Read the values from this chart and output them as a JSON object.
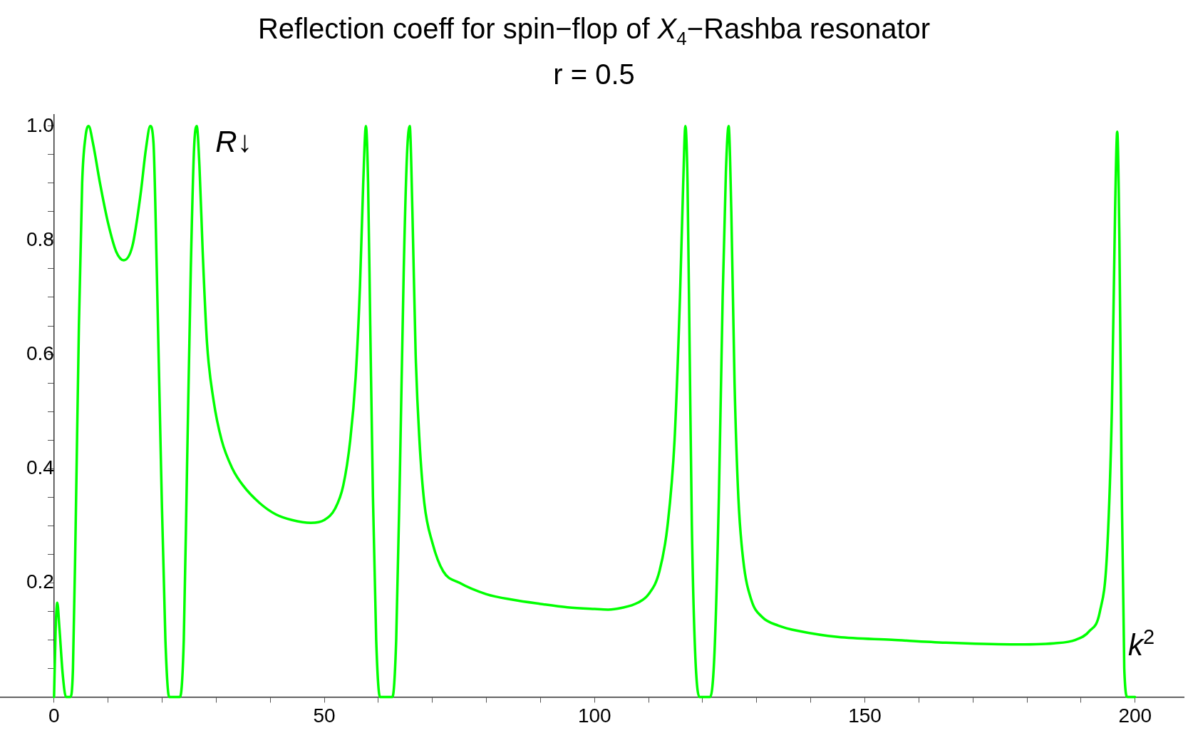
{
  "chart_data": {
    "type": "line",
    "title": "Reflection coeff for spin−flop of X$_{4}$−Rashba resonator",
    "subtitle": "r = 0.5",
    "xlabel": "k$^{2}$",
    "ylabel": "R↓",
    "series": [
      {
        "color": "#00ff00",
        "x": [
          0,
          0.3,
          0.6,
          1,
          1.6,
          2.2,
          3,
          3.5,
          4,
          4.6,
          5.2,
          5.8,
          6.4,
          7.2,
          8.5,
          10,
          11.5,
          12.9,
          14.5,
          16,
          17,
          17.8,
          18.4,
          19,
          19.8,
          20.6,
          21.3,
          23.3,
          24,
          24.6,
          25.3,
          25.9,
          26.4,
          26.9,
          27.5,
          28.3,
          29.5,
          31,
          33,
          35,
          38,
          41,
          44,
          47.5,
          50,
          52,
          53.5,
          54.8,
          55.8,
          56.6,
          57.2,
          57.7,
          58.1,
          58.5,
          59,
          59.6,
          60.3,
          62.6,
          63.3,
          64,
          64.7,
          65.3,
          65.8,
          66.3,
          66.9,
          67.6,
          68.5,
          70,
          72,
          75,
          80,
          85,
          90,
          95,
          100,
          102.5,
          105,
          108,
          110,
          112,
          113.5,
          114.8,
          115.8,
          116.4,
          116.8,
          117.2,
          117.6,
          118,
          118.6,
          119.4,
          121.4,
          122.2,
          123,
          123.7,
          124.3,
          124.8,
          125.3,
          125.9,
          126.6,
          127.5,
          129,
          131,
          134,
          138,
          145,
          155,
          165,
          177,
          185,
          189,
          191.5,
          193.5,
          194.8,
          195.7,
          196.3,
          196.7,
          197.1,
          197.5,
          198,
          198.6,
          200
        ],
        "values": [
          0,
          0.12,
          0.165,
          0.12,
          0.04,
          0,
          0,
          0.05,
          0.3,
          0.65,
          0.9,
          0.98,
          1.0,
          0.97,
          0.9,
          0.83,
          0.78,
          0.765,
          0.79,
          0.88,
          0.96,
          1.0,
          0.97,
          0.75,
          0.4,
          0.1,
          0,
          0,
          0.1,
          0.4,
          0.75,
          0.96,
          1.0,
          0.93,
          0.78,
          0.62,
          0.52,
          0.45,
          0.4,
          0.37,
          0.34,
          0.32,
          0.31,
          0.305,
          0.31,
          0.33,
          0.37,
          0.45,
          0.56,
          0.72,
          0.9,
          1.0,
          0.9,
          0.65,
          0.35,
          0.1,
          0,
          0,
          0.1,
          0.4,
          0.75,
          0.95,
          1.0,
          0.85,
          0.6,
          0.45,
          0.34,
          0.27,
          0.22,
          0.2,
          0.18,
          0.17,
          0.163,
          0.157,
          0.154,
          0.153,
          0.156,
          0.165,
          0.18,
          0.22,
          0.3,
          0.45,
          0.7,
          0.9,
          1.0,
          0.9,
          0.6,
          0.3,
          0.08,
          0,
          0,
          0.08,
          0.35,
          0.7,
          0.92,
          1.0,
          0.85,
          0.55,
          0.35,
          0.24,
          0.17,
          0.14,
          0.125,
          0.115,
          0.105,
          0.1,
          0.095,
          0.092,
          0.094,
          0.1,
          0.115,
          0.15,
          0.25,
          0.5,
          0.85,
          0.99,
          0.8,
          0.4,
          0.05,
          0,
          0
        ]
      }
    ],
    "xlim": [
      -10,
      209
    ],
    "ylim": [
      0,
      1.02
    ],
    "xticks": [
      0,
      {
        "value": 10,
        "label": null
      },
      {
        "value": 20,
        "label": null
      },
      {
        "value": 30,
        "label": null
      },
      {
        "value": 40,
        "label": null
      },
      50,
      {
        "value": 60,
        "label": null
      },
      {
        "value": 70,
        "label": null
      },
      {
        "value": 80,
        "label": null
      },
      {
        "value": 90,
        "label": null
      },
      100,
      {
        "value": 110,
        "label": null
      },
      {
        "value": 120,
        "label": null
      },
      {
        "value": 130,
        "label": null
      },
      {
        "value": 140,
        "label": null
      },
      150,
      {
        "value": 160,
        "label": null
      },
      {
        "value": 170,
        "label": null
      },
      {
        "value": 180,
        "label": null
      },
      {
        "value": 190,
        "label": null
      },
      200
    ],
    "yticks": [
      {
        "value": 0.05,
        "label": null
      },
      {
        "value": 0.1,
        "label": null
      },
      {
        "value": 0.15,
        "label": null
      },
      0.2,
      {
        "value": 0.25,
        "label": null
      },
      {
        "value": 0.3,
        "label": null
      },
      {
        "value": 0.35,
        "label": null
      },
      0.4,
      {
        "value": 0.45,
        "label": null
      },
      {
        "value": 0.5,
        "label": null
      },
      {
        "value": 0.55,
        "label": null
      },
      0.6,
      {
        "value": 0.65,
        "label": null
      },
      {
        "value": 0.7,
        "label": null
      },
      {
        "value": 0.75,
        "label": null
      },
      0.8,
      {
        "value": 0.85,
        "label": null
      },
      {
        "value": 0.9,
        "label": null
      },
      {
        "value": 0.95,
        "label": null
      },
      {
        "value": 1,
        "label": "1.0"
      }
    ],
    "grid": false,
    "legend": false,
    "marker": "none",
    "line_style": "solid"
  }
}
